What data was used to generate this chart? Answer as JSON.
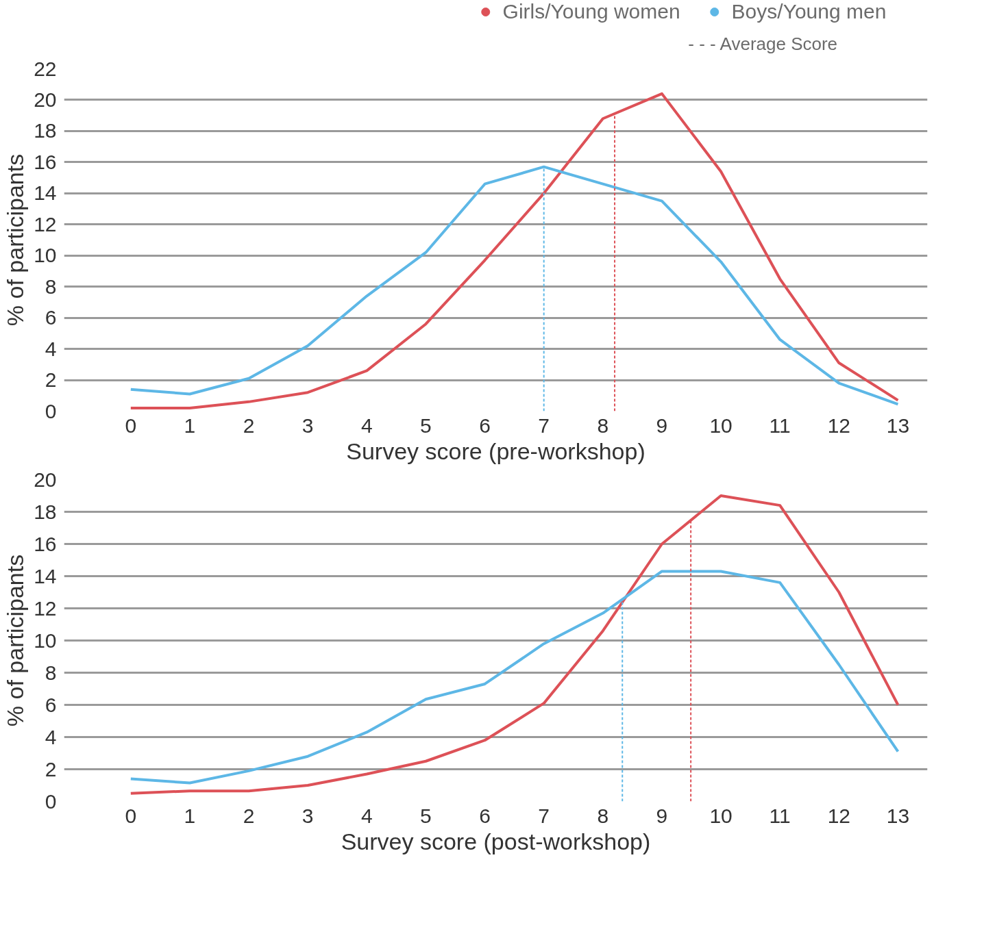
{
  "chart_data": [
    {
      "type": "line",
      "xlabel": "Survey score (pre-workshop)",
      "ylabel": "% of participants",
      "x": [
        0,
        1,
        2,
        3,
        4,
        5,
        6,
        7,
        8,
        9,
        10,
        11,
        12,
        13
      ],
      "series": [
        {
          "name": "Girls/Young women",
          "color": "#dd5157",
          "values": [
            0.2,
            0.2,
            0.6,
            1.2,
            2.6,
            5.6,
            9.7,
            14,
            18.8,
            20.4,
            15.4,
            8.5,
            3.1,
            0.7
          ]
        },
        {
          "name": "Boys/Young men",
          "color": "#5db7e6",
          "values": [
            1.4,
            1.1,
            2.1,
            4.2,
            7.4,
            10.2,
            14.6,
            15.7,
            14.6,
            13.5,
            9.6,
            4.6,
            1.8,
            0.45
          ]
        }
      ],
      "ref_lines": [
        {
          "axis": "x",
          "value": 7.0,
          "color": "#5db7e6",
          "line_style": "dashed"
        },
        {
          "axis": "x",
          "value": 8.2,
          "color": "#dd5157",
          "line_style": "dashed"
        }
      ],
      "annotations": [
        "- - - Average Score"
      ],
      "xlim": [
        -1.13,
        13.5
      ],
      "xticks": [
        0,
        1,
        2,
        3,
        4,
        5,
        6,
        7,
        8,
        9,
        10,
        11,
        12,
        13
      ],
      "ylim": [
        0,
        22
      ],
      "yticks": [
        0,
        2,
        4,
        6,
        8,
        10,
        12,
        14,
        16,
        18,
        20,
        22
      ],
      "grid": "y",
      "legend": "top right",
      "marker": "none",
      "line_style": "solid"
    },
    {
      "type": "line",
      "xlabel": "Survey score (post-workshop)",
      "ylabel": "% of participants",
      "x": [
        0,
        1,
        2,
        3,
        4,
        5,
        6,
        7,
        8,
        9,
        10,
        11,
        12,
        13
      ],
      "series": [
        {
          "color": "#dd5157",
          "values": [
            0.5,
            0.65,
            0.65,
            1.0,
            1.7,
            2.5,
            3.8,
            6.1,
            10.6,
            16,
            19,
            18.4,
            13,
            6.0
          ]
        },
        {
          "color": "#5db7e6",
          "values": [
            1.4,
            1.15,
            1.9,
            2.8,
            4.3,
            6.35,
            7.3,
            9.8,
            11.7,
            14.3,
            14.3,
            13.6,
            8.5,
            3.1
          ]
        }
      ],
      "ref_lines": [
        {
          "axis": "x",
          "value": 8.33,
          "color": "#5db7e6",
          "line_style": "dashed"
        },
        {
          "axis": "x",
          "value": 9.49,
          "color": "#dd5157",
          "line_style": "dashed"
        }
      ],
      "xlim": [
        -1.13,
        13.5
      ],
      "xticks": [
        0,
        1,
        2,
        3,
        4,
        5,
        6,
        7,
        8,
        9,
        10,
        11,
        12,
        13
      ],
      "ylim": [
        0,
        20
      ],
      "yticks": [
        0,
        2,
        4,
        6,
        8,
        10,
        12,
        14,
        16,
        18,
        20
      ],
      "grid": "y",
      "legend": false,
      "marker": "none",
      "line_style": "solid"
    }
  ]
}
